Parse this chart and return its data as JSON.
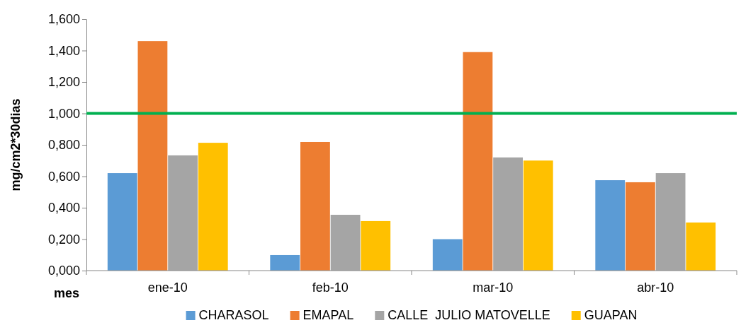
{
  "chart_data": {
    "type": "bar",
    "ylabel": "mg/cm2*30dias",
    "xlabel": "mes",
    "categories": [
      "ene-10",
      "feb-10",
      "mar-10",
      "abr-10"
    ],
    "series": [
      {
        "name": "CHARASOL",
        "color": "#5b9bd5",
        "values": [
          0.62,
          0.099,
          0.2,
          0.575
        ]
      },
      {
        "name": "EMAPAL",
        "color": "#ed7d31",
        "values": [
          1.46,
          0.818,
          1.39,
          0.562
        ]
      },
      {
        "name": "CALLE  JULIO MATOVELLE",
        "color": "#a5a5a5",
        "values": [
          0.733,
          0.355,
          0.72,
          0.62
        ]
      },
      {
        "name": "GUAPAN",
        "color": "#ffc000",
        "values": [
          0.813,
          0.315,
          0.7,
          0.306
        ]
      }
    ],
    "ylim": [
      0,
      1.6
    ],
    "yticks": [
      {
        "value": 0,
        "label": "0,000"
      },
      {
        "value": 0.2,
        "label": "0,200"
      },
      {
        "value": 0.4,
        "label": "0,400"
      },
      {
        "value": 0.6,
        "label": "0,600"
      },
      {
        "value": 0.8,
        "label": "0,800"
      },
      {
        "value": 1,
        "label": "1,000"
      },
      {
        "value": 1.2,
        "label": "1,200"
      },
      {
        "value": 1.4,
        "label": "1,400"
      },
      {
        "value": 1.6,
        "label": "1,600"
      }
    ],
    "ref_lines": [
      {
        "axis": "y",
        "value": 1,
        "color": "#00b050"
      }
    ],
    "grid": false,
    "legend": "bottom"
  }
}
